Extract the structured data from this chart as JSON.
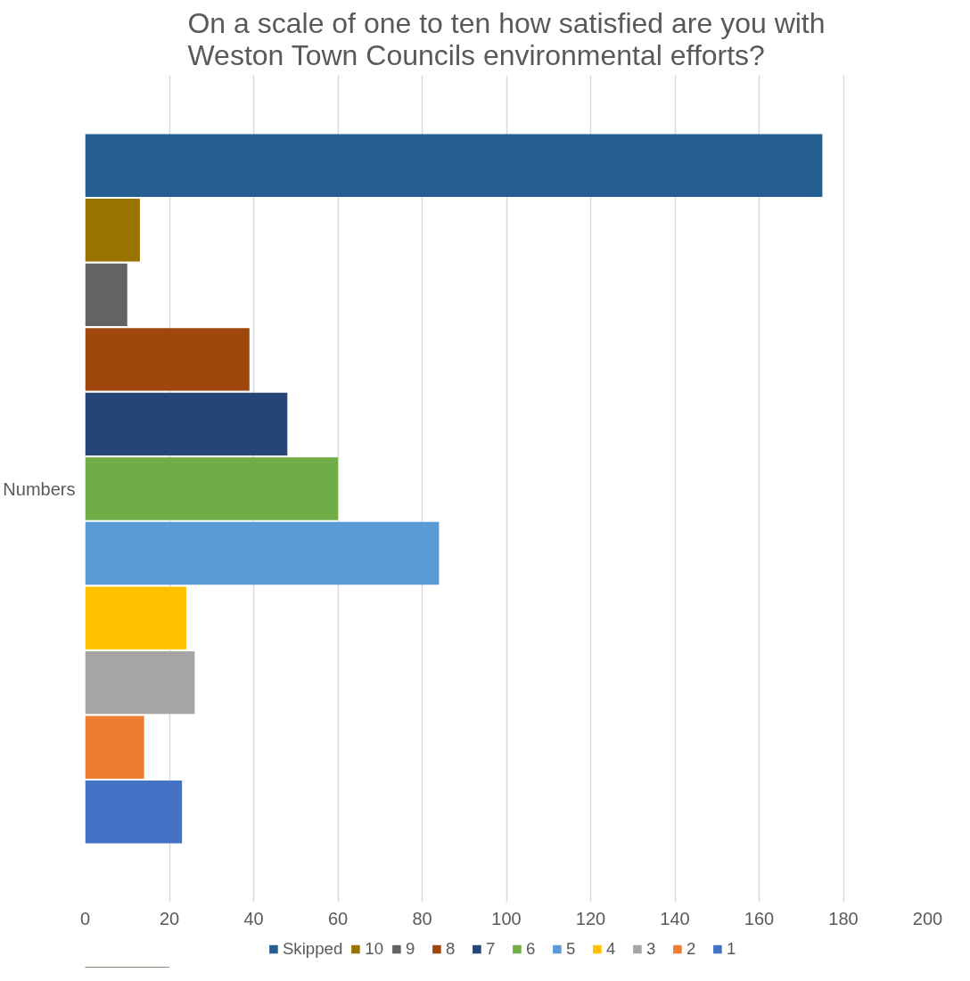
{
  "chart_data": {
    "type": "bar",
    "orientation": "horizontal",
    "title": "On a scale of one to ten how satisfied are you with Weston Town Councils environmental efforts?",
    "categories": [
      "Numbers"
    ],
    "series": [
      {
        "name": "Skipped",
        "color": "#255e91",
        "values": [
          175
        ]
      },
      {
        "name": "10",
        "color": "#997300",
        "values": [
          13
        ]
      },
      {
        "name": "9",
        "color": "#636363",
        "values": [
          10
        ]
      },
      {
        "name": "8",
        "color": "#9e480e",
        "values": [
          39
        ]
      },
      {
        "name": "7",
        "color": "#264478",
        "values": [
          48
        ]
      },
      {
        "name": "6",
        "color": "#70ad47",
        "values": [
          60
        ]
      },
      {
        "name": "5",
        "color": "#5b9bd5",
        "values": [
          84
        ]
      },
      {
        "name": "4",
        "color": "#ffc000",
        "values": [
          24
        ]
      },
      {
        "name": "3",
        "color": "#a5a5a5",
        "values": [
          26
        ]
      },
      {
        "name": "2",
        "color": "#ed7d31",
        "values": [
          14
        ]
      },
      {
        "name": "1",
        "color": "#4472c4",
        "values": [
          23
        ]
      }
    ],
    "xlim": [
      0,
      200
    ],
    "xticks": [
      0,
      20,
      40,
      60,
      80,
      100,
      120,
      140,
      160,
      180,
      200
    ],
    "grid": "x",
    "legend": "bottom"
  }
}
